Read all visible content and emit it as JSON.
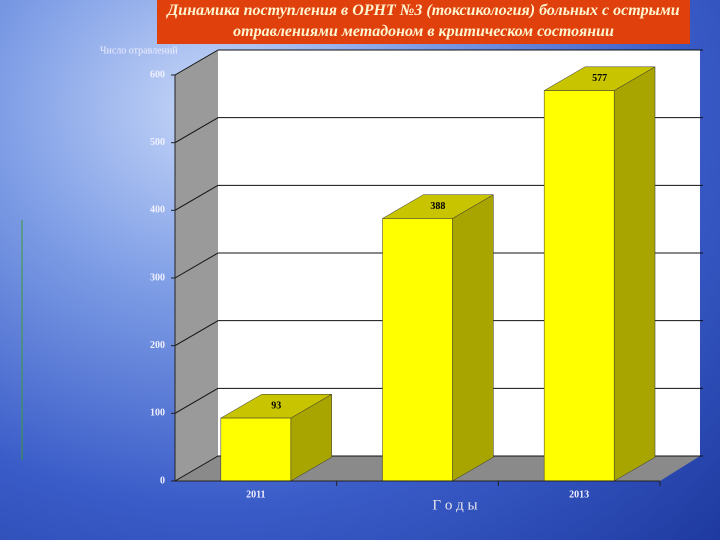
{
  "chart_data": {
    "type": "bar3d",
    "title": "Динамика поступления в ОРНТ №3 (токсикология) больных с острыми отравлениями метадоном в критическом состоянии",
    "y_axis_label": "Число отравлений",
    "x_axis_label": "Г о д ы",
    "categories": [
      "2011",
      null,
      "2013"
    ],
    "values": [
      93,
      388,
      577
    ],
    "color": "#ffff00",
    "ylim": [
      0,
      600
    ],
    "yticks": [
      0,
      100,
      200,
      300,
      400,
      500,
      600
    ],
    "grid": true
  }
}
